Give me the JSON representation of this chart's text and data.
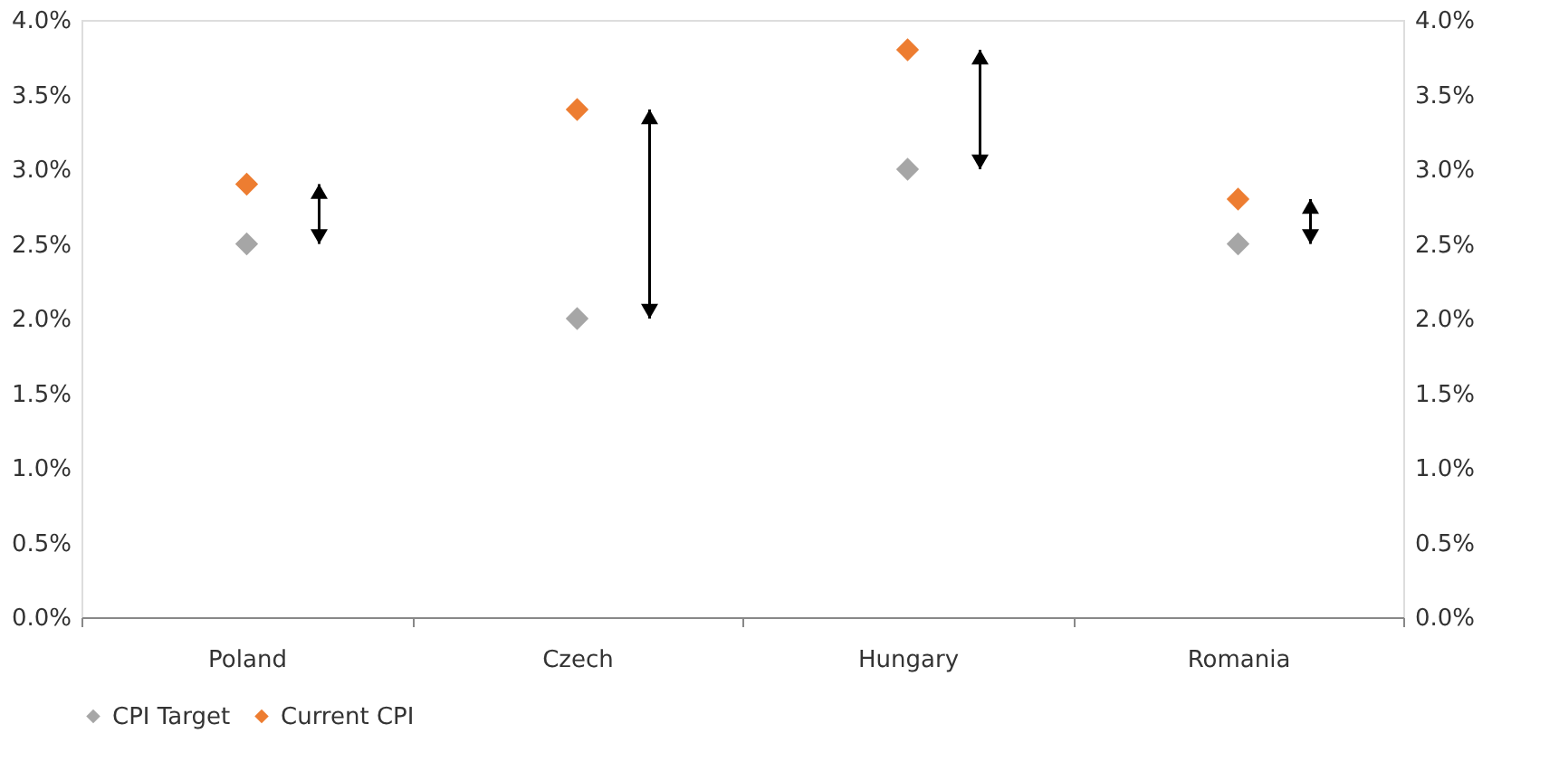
{
  "chart_data": {
    "type": "scatter",
    "categories": [
      "Poland",
      "Czech",
      "Hungary",
      "Romania"
    ],
    "series": [
      {
        "name": "CPI Target",
        "color": "#a6a6a6",
        "values": [
          2.5,
          2.0,
          3.0,
          2.5
        ]
      },
      {
        "name": "Current CPI",
        "color": "#ed7d31",
        "values": [
          2.9,
          3.4,
          3.8,
          2.8
        ]
      }
    ],
    "marker": "diamond",
    "ylim": [
      0,
      4
    ],
    "yticks": [
      {
        "value": 0,
        "label": "0.0%"
      },
      {
        "value": 0.5,
        "label": "0.5%"
      },
      {
        "value": 1,
        "label": "1.0%"
      },
      {
        "value": 1.5,
        "label": "1.5%"
      },
      {
        "value": 2,
        "label": "2.0%"
      },
      {
        "value": 2.5,
        "label": "2.5%"
      },
      {
        "value": 3,
        "label": "3.0%"
      },
      {
        "value": 3.5,
        "label": "3.5%"
      },
      {
        "value": 4,
        "label": "4.0%"
      }
    ],
    "y2lim": [
      0,
      4
    ],
    "y2ticks": [
      {
        "value": 0,
        "label": "0.0%"
      },
      {
        "value": 0.5,
        "label": "0.5%"
      },
      {
        "value": 1,
        "label": "1.0%"
      },
      {
        "value": 1.5,
        "label": "1.5%"
      },
      {
        "value": 2,
        "label": "2.0%"
      },
      {
        "value": 2.5,
        "label": "2.5%"
      },
      {
        "value": 3,
        "label": "3.0%"
      },
      {
        "value": 3.5,
        "label": "3.5%"
      },
      {
        "value": 4,
        "label": "4.0%"
      }
    ],
    "grid": false,
    "legend": "bottom"
  }
}
